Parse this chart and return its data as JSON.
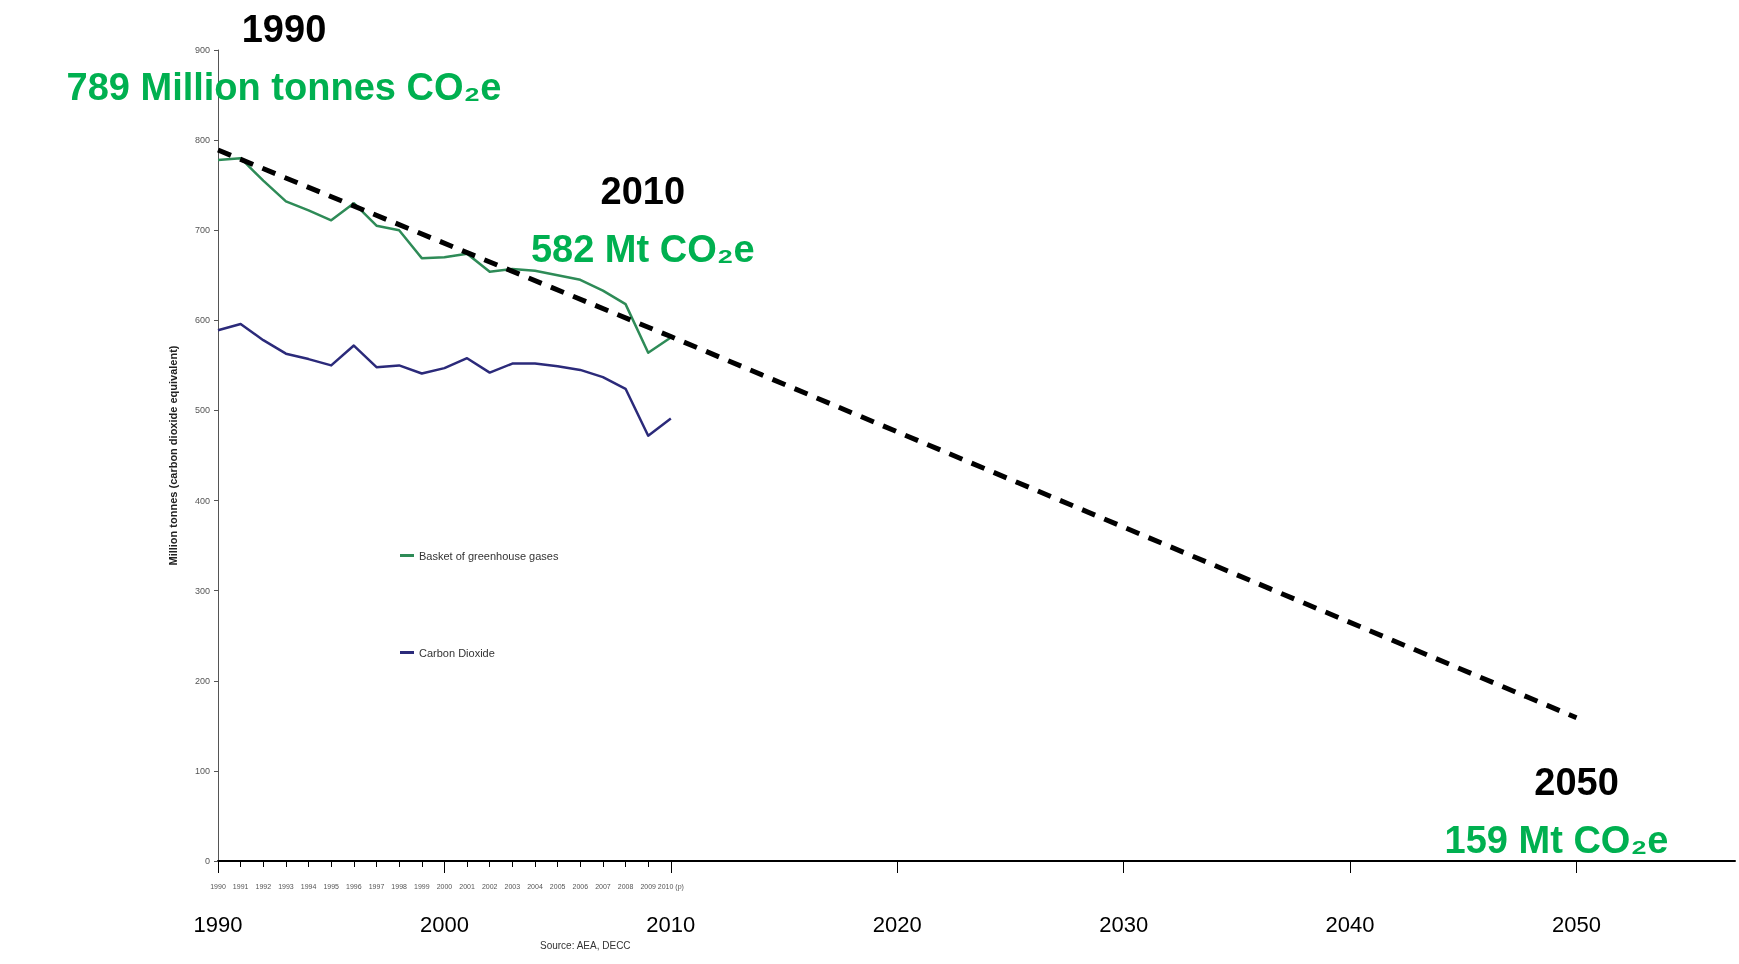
{
  "chart_data": {
    "type": "line",
    "ylabel": "Million tonnes (carbon dioxide equivalent)",
    "x": [
      1990,
      1991,
      1992,
      1993,
      1994,
      1995,
      1996,
      1997,
      1998,
      1999,
      2000,
      2001,
      2002,
      2003,
      2004,
      2005,
      2006,
      2007,
      2008,
      2009,
      2010
    ],
    "series": [
      {
        "name": "Basket of greenhouse gases",
        "color": "#2e8b57",
        "values": [
          778,
          780,
          755,
          732,
          722,
          711,
          730,
          705,
          700,
          669,
          670,
          674,
          654,
          657,
          655,
          650,
          645,
          633,
          618,
          564,
          581
        ]
      },
      {
        "name": "Carbon Dioxide",
        "color": "#2b2a7a",
        "values": [
          589,
          596,
          578,
          563,
          557,
          550,
          572,
          548,
          550,
          541,
          547,
          558,
          542,
          552,
          552,
          549,
          545,
          537,
          524,
          472,
          491
        ]
      },
      {
        "type": "line",
        "color": "#000000",
        "line_style": "dashed",
        "x": [
          1990,
          2010,
          2050
        ],
        "values": [
          789,
          582,
          159
        ]
      }
    ],
    "xlim": [
      1990,
      2057
    ],
    "xticks": [
      1990,
      1991,
      1992,
      1993,
      1994,
      1995,
      1996,
      1997,
      1998,
      1999,
      2000,
      2001,
      2002,
      2003,
      2004,
      2005,
      2006,
      2007,
      2008,
      2009,
      {
        "value": 2010,
        "label": "2010 (p)"
      }
    ],
    "x2lim": [
      1990,
      2057
    ],
    "x2ticks": [
      1990,
      2000,
      2010,
      2020,
      2030,
      2040,
      2050
    ],
    "ylim": [
      0,
      900
    ],
    "yticks": [
      0,
      100,
      200,
      300,
      400,
      500,
      600,
      700,
      800,
      900
    ],
    "grid": false,
    "legend": "left",
    "marker": "none",
    "line_style": "solid",
    "annotations": [
      "1990",
      {
        "text": "789 Million tonnes CO₂e",
        "x": 1990,
        "y": 789
      },
      "2010",
      {
        "text": "582 Mt CO₂e",
        "x": 2010,
        "y": 582
      },
      "2050",
      {
        "text": "159 Mt CO₂e",
        "x": 2050,
        "y": 159
      },
      "Source: AEA, DECC"
    ]
  }
}
